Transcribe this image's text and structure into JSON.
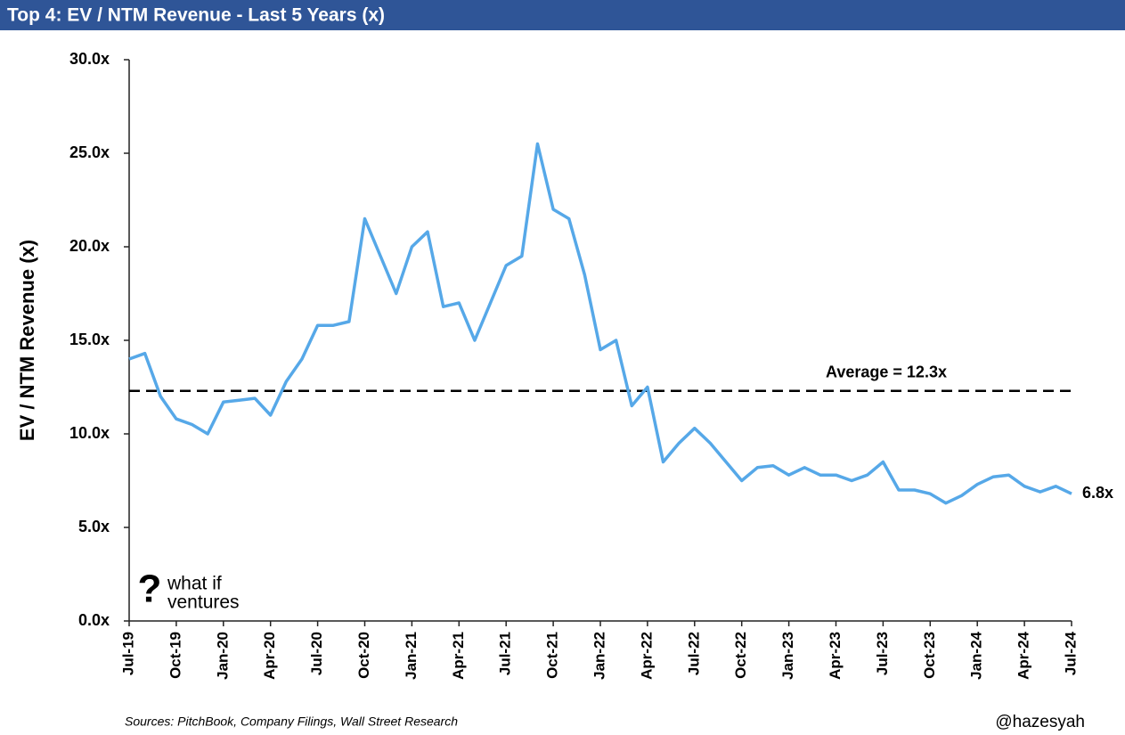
{
  "chart_data": {
    "type": "line",
    "title": "Top 4: EV / NTM Revenue - Last 5 Years (x)",
    "y_label": "EV / NTM Revenue (x)",
    "source": "Sources: PitchBook, Company Filings, Wall Street Research",
    "handle": "@hazesyah",
    "logo": {
      "mark": "?",
      "line1": "what if",
      "line2": "ventures"
    },
    "categories": [
      "Jul-19",
      null,
      null,
      "Oct-19",
      null,
      null,
      "Jan-20",
      null,
      null,
      "Apr-20",
      null,
      null,
      "Jul-20",
      null,
      null,
      "Oct-20",
      null,
      null,
      "Jan-21",
      null,
      null,
      "Apr-21",
      null,
      null,
      "Jul-21",
      null,
      null,
      "Oct-21",
      null,
      null,
      "Jan-22",
      null,
      null,
      "Apr-22",
      null,
      null,
      "Jul-22",
      null,
      null,
      "Oct-22",
      null,
      null,
      "Jan-23",
      null,
      null,
      "Apr-23",
      null,
      null,
      "Jul-23",
      null,
      null,
      "Oct-23",
      null,
      null,
      "Jan-24",
      null,
      null,
      "Apr-24",
      null,
      null,
      "Jul-24"
    ],
    "series": [
      {
        "name": "EV / NTM Revenue",
        "color": "#56a8e8",
        "values": [
          14.0,
          14.3,
          12.0,
          10.8,
          10.5,
          10.0,
          11.7,
          11.8,
          11.9,
          11.0,
          12.8,
          14.0,
          15.8,
          15.8,
          16.0,
          21.5,
          19.5,
          17.5,
          20.0,
          20.8,
          16.8,
          17.0,
          15.0,
          17.0,
          19.0,
          19.5,
          25.5,
          22.0,
          21.5,
          18.5,
          14.5,
          15.0,
          11.5,
          12.5,
          8.5,
          9.5,
          10.3,
          9.5,
          8.5,
          7.5,
          8.2,
          8.3,
          7.8,
          8.2,
          7.8,
          7.8,
          7.5,
          7.8,
          8.5,
          7.0,
          7.0,
          6.8,
          6.3,
          6.7,
          7.3,
          7.7,
          7.8,
          7.2,
          6.9,
          7.2,
          6.8
        ],
        "value_labels": [
          null,
          null,
          null,
          null,
          null,
          null,
          null,
          null,
          null,
          null,
          null,
          null,
          null,
          null,
          null,
          null,
          null,
          null,
          null,
          null,
          null,
          null,
          null,
          null,
          null,
          null,
          null,
          null,
          null,
          null,
          null,
          null,
          null,
          null,
          null,
          null,
          null,
          null,
          null,
          null,
          null,
          null,
          null,
          null,
          null,
          null,
          null,
          null,
          null,
          null,
          null,
          null,
          null,
          null,
          null,
          null,
          null,
          null,
          null,
          null,
          "6.8x"
        ]
      }
    ],
    "average": 12.3,
    "average_label": "Average = 12.3x",
    "ylim": [
      0,
      30
    ],
    "yticks": [
      {
        "value": 0,
        "label": "0.0x"
      },
      {
        "value": 5,
        "label": "5.0x"
      },
      {
        "value": 10,
        "label": "10.0x"
      },
      {
        "value": 15,
        "label": "15.0x"
      },
      {
        "value": 20,
        "label": "20.0x"
      },
      {
        "value": 25,
        "label": "25.0x"
      },
      {
        "value": 30,
        "label": "30.0x"
      }
    ]
  }
}
